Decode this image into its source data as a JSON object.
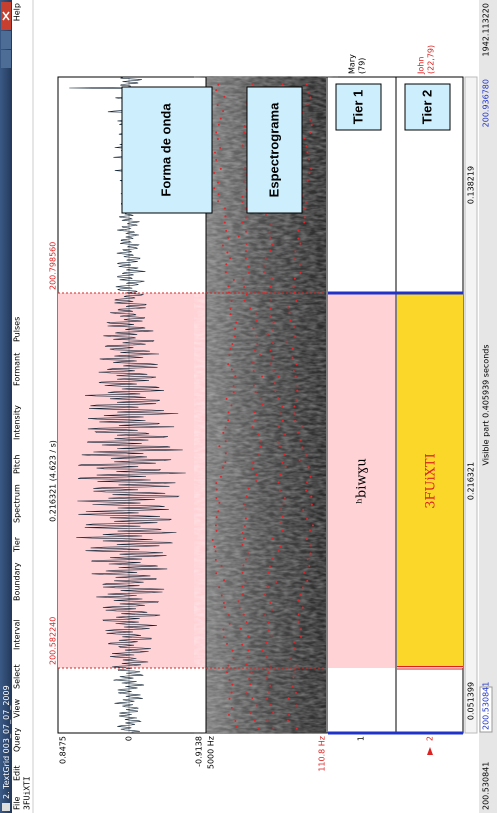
{
  "window": {
    "title": "2. TextGrid 003_07_07_2009",
    "menu": [
      "File",
      "Edit",
      "Query",
      "View",
      "Select",
      "Interval",
      "Boundary",
      "Tier",
      "Spectrum",
      "Pitch",
      "Intensity",
      "Formant",
      "Pulses"
    ],
    "help": "Help",
    "object_name": "3FUiXTI"
  },
  "top_readout": {
    "start": "200.582240",
    "duration": "0.216321 (4.623 / s)",
    "end": "200.798560"
  },
  "axis_labels": {
    "wave_max": "0.8475",
    "wave_zero": "0",
    "wave_min": "-0.9138",
    "spec_max": "5000 Hz",
    "pitch_min": "110.8 Hz",
    "tier1_number": "1",
    "tier2_number": "2"
  },
  "tiers": [
    {
      "name": "Mary",
      "count": "(79)",
      "label": "ʰbiwɣu"
    },
    {
      "name": "John",
      "count": "(22,79)",
      "label": "3FUiXTI"
    }
  ],
  "annotations": [
    "Forma de onda",
    "Espectrograma",
    "Tier 1",
    "Tier 2"
  ],
  "bottom_readout": {
    "left": "0.051399",
    "selection": "0.216321",
    "right": "0.138219"
  },
  "footer": {
    "window_start": "200.530841",
    "visible_start": "200.530841",
    "visible_part": "Visible part 0.405939 seconds",
    "visible_end": "200.936780",
    "total_end": "1942.113220"
  }
}
